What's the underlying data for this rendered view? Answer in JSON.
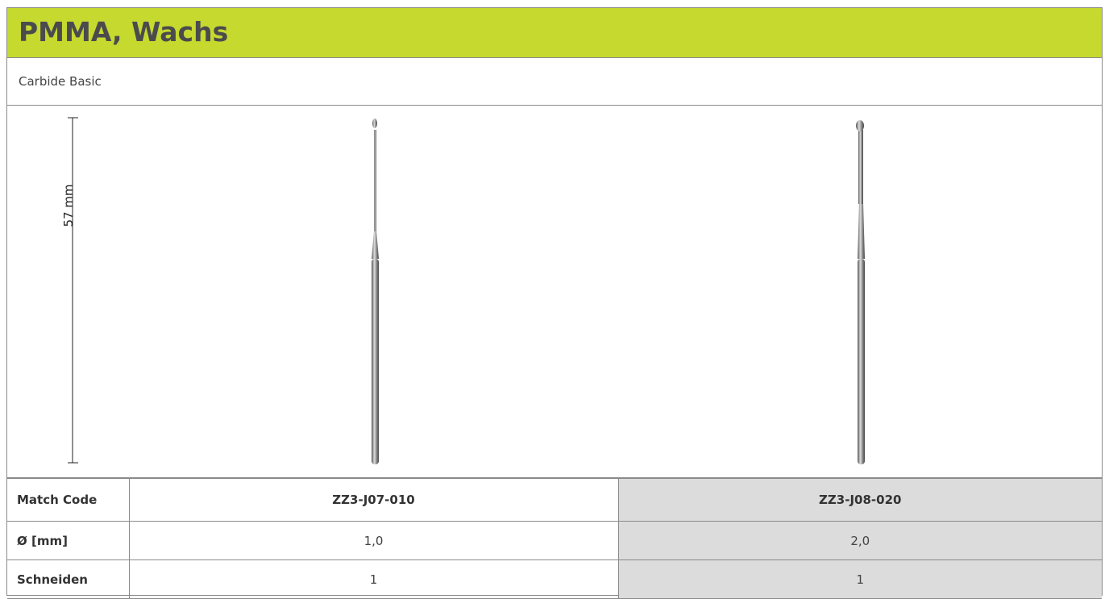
{
  "header": {
    "title": "PMMA, Wachs"
  },
  "subtitle": "Carbide Basic",
  "dimension": "57 mm",
  "table": {
    "rows": [
      [
        "Match Code",
        "ZZ3-J07-010",
        "ZZ3-J08-020"
      ],
      [
        "Ø [mm]",
        "1,0",
        "2,0"
      ],
      [
        "Schneiden",
        "1",
        "1"
      ]
    ]
  }
}
